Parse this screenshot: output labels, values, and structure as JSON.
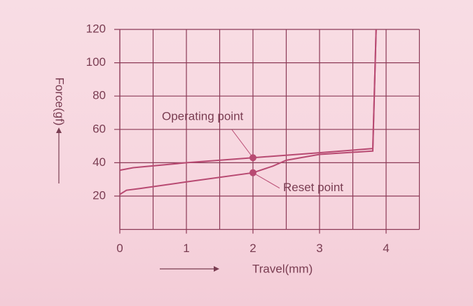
{
  "chart_data": {
    "type": "line",
    "xlabel": "Travel(mm)",
    "ylabel": "Force(gf)",
    "xlim": [
      0,
      4.5
    ],
    "xticks": [
      0,
      1,
      2,
      3,
      4
    ],
    "x_gridlines": [
      0,
      0.5,
      1,
      1.5,
      2,
      2.5,
      3,
      3.5,
      4,
      4.5
    ],
    "ylim": [
      0,
      120
    ],
    "yticks": [
      20,
      40,
      60,
      80,
      100,
      120
    ],
    "grid": true,
    "grid_color": "#8c3a57",
    "series": [
      {
        "color": "#b84a72",
        "x": [
          0,
          0.2,
          1,
          2,
          3,
          3.8,
          3.85
        ],
        "values": [
          35.5,
          37,
          40,
          43,
          46,
          48.5,
          120
        ]
      },
      {
        "color": "#b84a72",
        "x": [
          0,
          0.1,
          0.3,
          1,
          2,
          2.3,
          2.5,
          3,
          3.8,
          3.85
        ],
        "values": [
          21,
          23.5,
          24.5,
          28.5,
          34,
          38,
          41.5,
          45,
          47,
          120
        ]
      }
    ],
    "annotations": [
      {
        "text": "Operating point",
        "x": 2,
        "y": 43
      },
      {
        "text": "Reset point",
        "x": 2,
        "y": 34
      }
    ]
  }
}
